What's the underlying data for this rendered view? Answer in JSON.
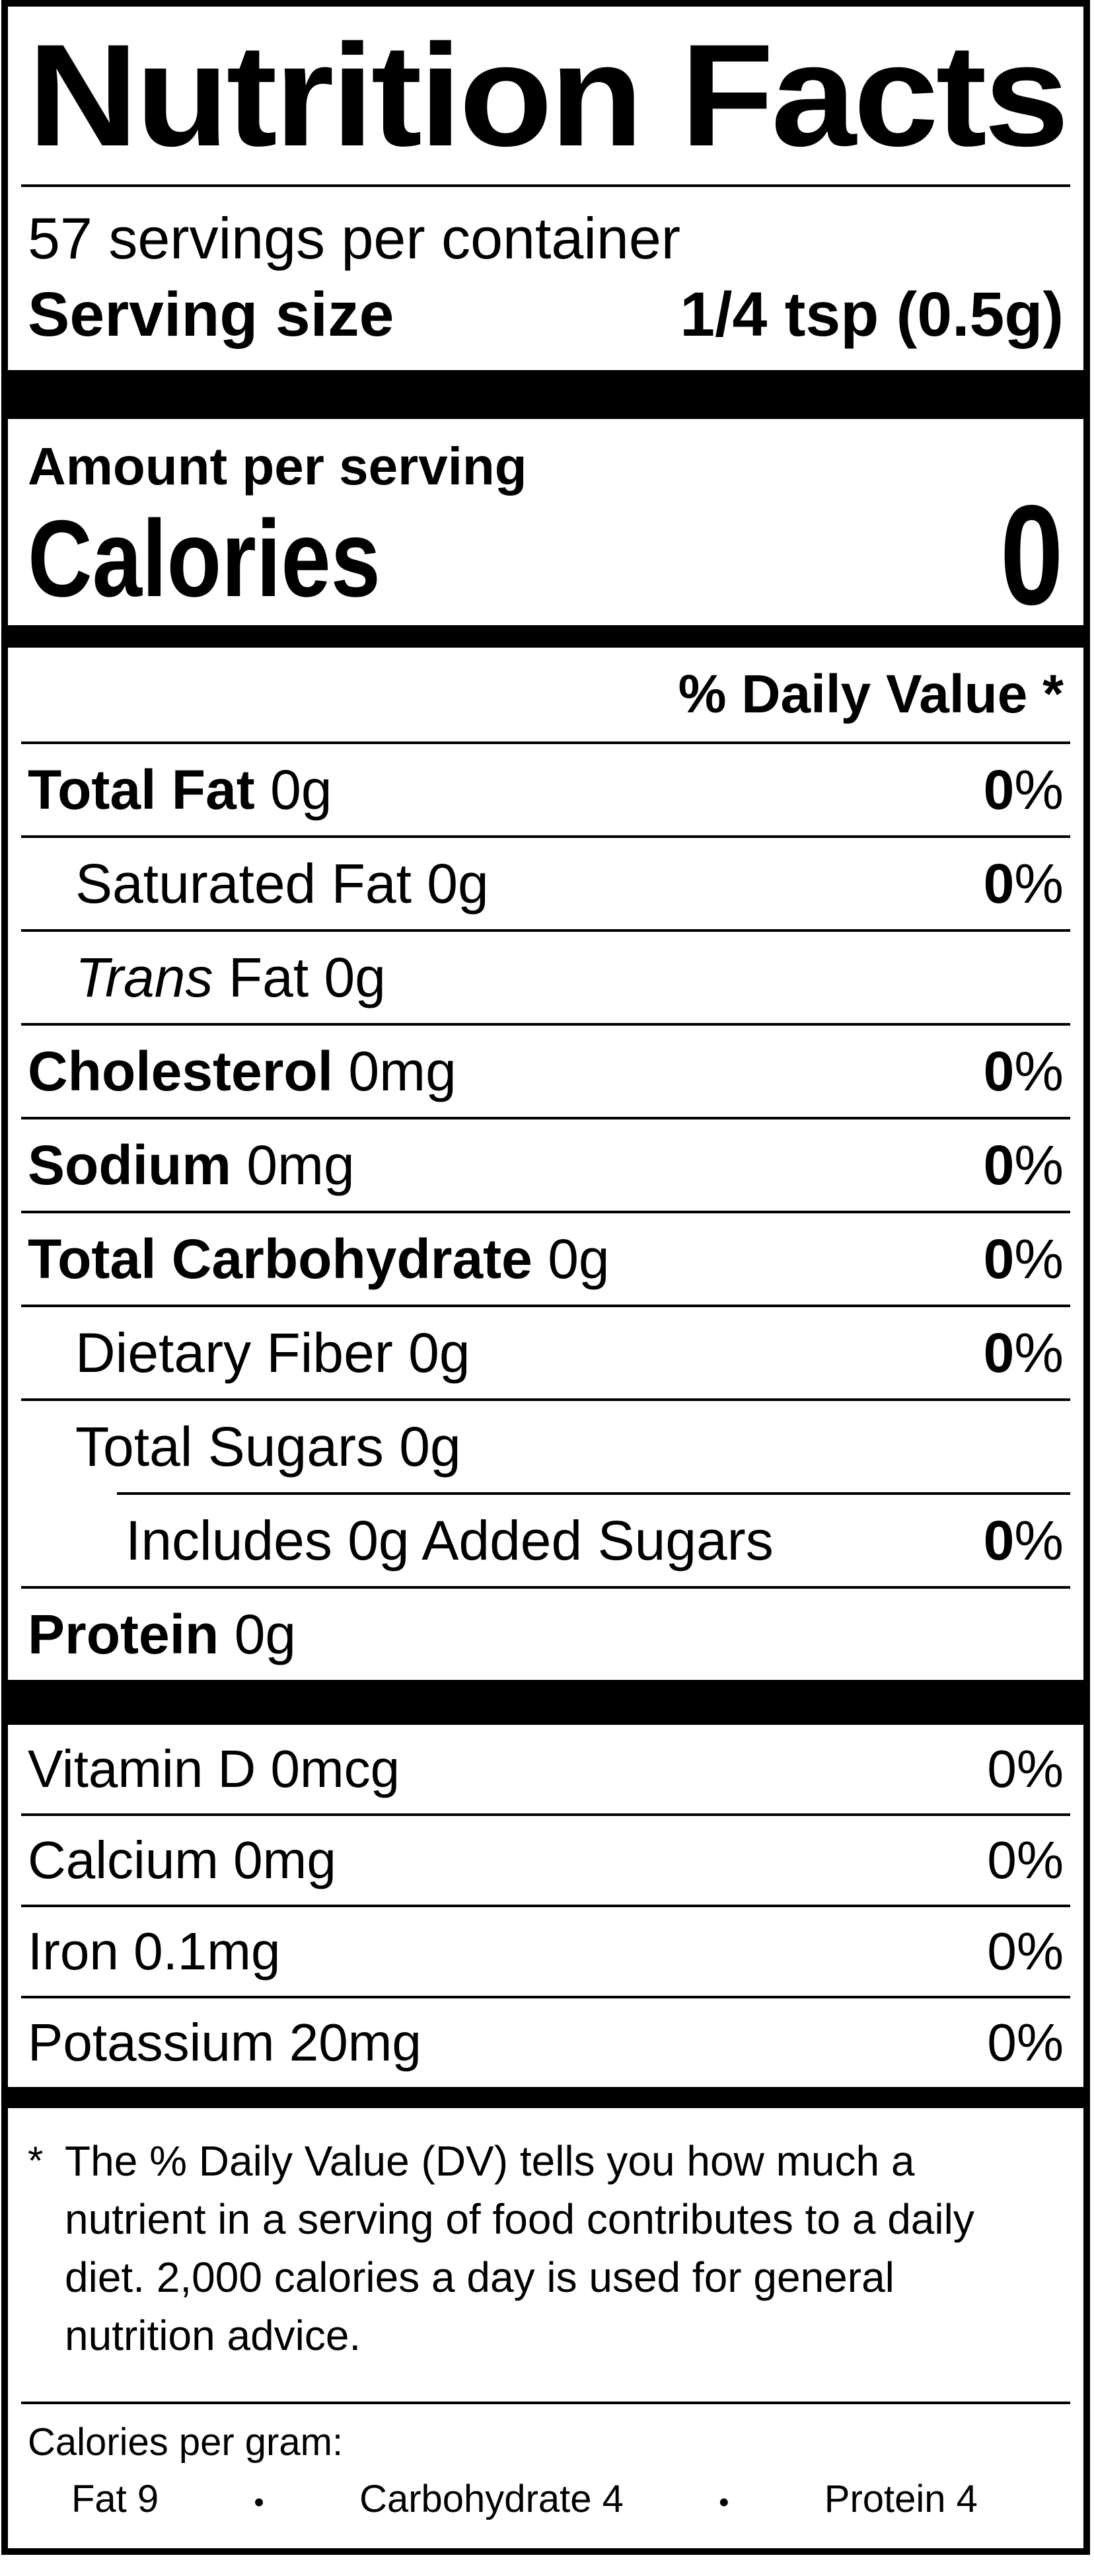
{
  "colors": {
    "ink": "#000000",
    "paper": "#ffffff"
  },
  "label": {
    "title": "Nutrition Facts",
    "servings_per_container": "57 servings per container",
    "serving_size": {
      "label": "Serving size",
      "value": "1/4 tsp (0.5g)"
    },
    "amount_per_serving": "Amount per serving",
    "calories": {
      "label": "Calories",
      "value": "0"
    },
    "daily_value_header": "% Daily Value *",
    "nutrients": [
      {
        "name": "Total Fat",
        "amount": "0g",
        "dv": "0%",
        "bold": true,
        "indent": 0
      },
      {
        "name": "Saturated Fat",
        "amount": "0g",
        "dv": "0%",
        "bold": false,
        "indent": 1
      },
      {
        "name": "Trans Fat",
        "amount": "0g",
        "dv": null,
        "bold": false,
        "indent": 1,
        "italic_first_word": true
      },
      {
        "name": "Cholesterol",
        "amount": "0mg",
        "dv": "0%",
        "bold": true,
        "indent": 0
      },
      {
        "name": "Sodium",
        "amount": "0mg",
        "dv": "0%",
        "bold": true,
        "indent": 0
      },
      {
        "name": "Total Carbohydrate",
        "amount": "0g",
        "dv": "0%",
        "bold": true,
        "indent": 0
      },
      {
        "name": "Dietary Fiber",
        "amount": "0g",
        "dv": "0%",
        "bold": false,
        "indent": 1
      },
      {
        "name": "Total Sugars",
        "amount": "0g",
        "dv": null,
        "bold": false,
        "indent": 1,
        "divider_after": "indent2"
      },
      {
        "name": "Includes 0g Added Sugars",
        "amount": "",
        "dv": "0%",
        "bold": false,
        "indent": 2
      },
      {
        "name": "Protein",
        "amount": "0g",
        "dv": null,
        "bold": true,
        "indent": 0
      }
    ],
    "vitamins": [
      {
        "name": "Vitamin D",
        "amount": "0mcg",
        "dv": "0%"
      },
      {
        "name": "Calcium",
        "amount": "0mg",
        "dv": "0%"
      },
      {
        "name": "Iron",
        "amount": "0.1mg",
        "dv": "0%"
      },
      {
        "name": "Potassium",
        "amount": "20mg",
        "dv": "0%"
      }
    ],
    "footnote": {
      "marker": "*",
      "text": "The % Daily Value (DV) tells you how much a nutrient in a serving of food contributes to a daily diet. 2,000 calories a day is used for general nutrition advice."
    },
    "calories_per_gram": {
      "heading": "Calories per gram:",
      "separator": "•",
      "items": [
        "Fat 9",
        "Carbohydrate 4",
        "Protein 4"
      ]
    }
  }
}
